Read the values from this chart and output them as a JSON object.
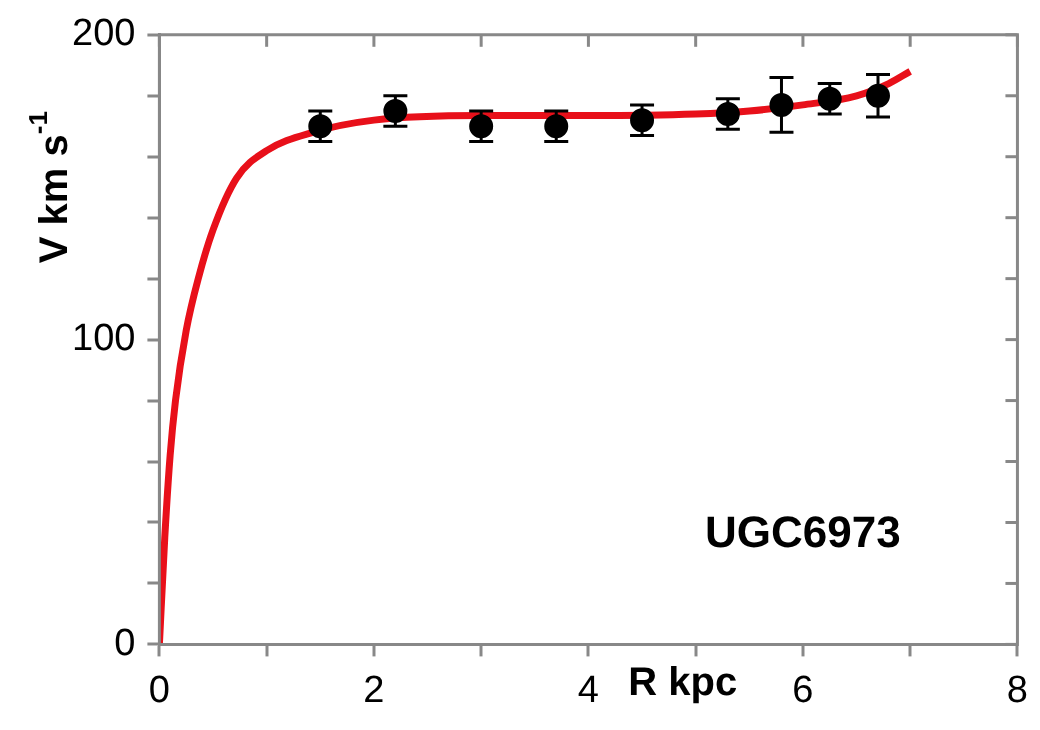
{
  "chart_data": {
    "type": "scatter",
    "xlabel": "R kpc",
    "ylabel": "V km s$^{-1}$",
    "annotations": [
      "UGC6973"
    ],
    "xlim": [
      0,
      8
    ],
    "xticks": [
      0,
      {
        "value": 1,
        "label": null
      },
      2,
      {
        "value": 3,
        "label": null
      },
      4,
      {
        "value": 5,
        "label": null
      },
      6,
      {
        "value": 7,
        "label": null
      },
      8
    ],
    "ylim": [
      0,
      200
    ],
    "yticks": [
      0,
      {
        "value": 20,
        "label": null
      },
      {
        "value": 40,
        "label": null
      },
      {
        "value": 60,
        "label": null
      },
      {
        "value": 80,
        "label": null
      },
      100,
      {
        "value": 120,
        "label": null
      },
      {
        "value": 140,
        "label": null
      },
      {
        "value": 160,
        "label": null
      },
      {
        "value": 180,
        "label": null
      },
      200
    ],
    "grid": false,
    "legend": false,
    "marker": "circle",
    "series": [
      {
        "type": "line",
        "color": "#e8101a",
        "line_style": "solid",
        "marker": "none",
        "x": [
          0,
          0.05,
          0.1,
          0.15,
          0.25,
          0.37,
          0.5,
          0.72,
          1.0,
          1.43,
          2,
          3,
          4,
          5,
          5.5,
          6,
          6.5,
          6.8,
          7.0
        ],
        "values": [
          0,
          35,
          62,
          80,
          103,
          121,
          136,
          153,
          162,
          168,
          172,
          173.5,
          173.5,
          174,
          175,
          177,
          180,
          184,
          188
        ]
      },
      {
        "type": "scatter",
        "color": "#000000",
        "x": [
          1.5,
          2.2,
          3.0,
          3.7,
          4.5,
          5.3,
          5.8,
          6.25,
          6.7
        ],
        "values": [
          170,
          175,
          170,
          170,
          172,
          174,
          177,
          179,
          180
        ],
        "errors": [
          5,
          5,
          5,
          5,
          5,
          5,
          9,
          5,
          7
        ]
      }
    ]
  }
}
